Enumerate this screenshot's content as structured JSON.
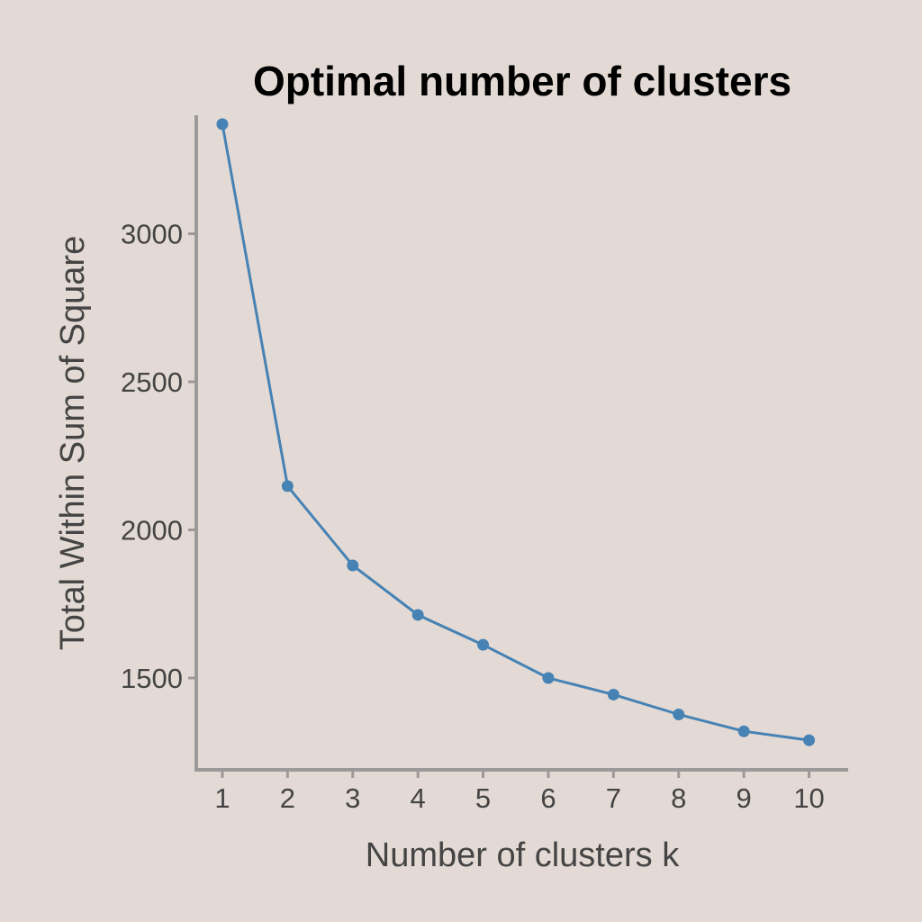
{
  "colors": {
    "background": "#e4dad5",
    "axis": "#9c9a99",
    "text": "#444444",
    "title": "#000000",
    "series": "#4682b4"
  },
  "chart_data": {
    "type": "line",
    "title": "Optimal number of clusters",
    "xlabel": "Number of clusters k",
    "ylabel": "Total Within Sum of Square",
    "x": [
      1,
      2,
      3,
      4,
      5,
      6,
      7,
      8,
      9,
      10
    ],
    "x_tick_labels": [
      "1",
      "2",
      "3",
      "4",
      "5",
      "6",
      "7",
      "8",
      "9",
      "10"
    ],
    "y_ticks": [
      1500,
      2000,
      2500,
      3000
    ],
    "y_tick_labels": [
      "1500",
      "2000",
      "2500",
      "3000"
    ],
    "xlim": [
      0.6,
      10.6
    ],
    "ylim": [
      1190,
      3400
    ],
    "series": [
      {
        "values": [
          3370,
          2148,
          1880,
          1713,
          1612,
          1500,
          1444,
          1377,
          1320,
          1290
        ],
        "markers": true
      }
    ],
    "grid": false,
    "legend": "none"
  }
}
